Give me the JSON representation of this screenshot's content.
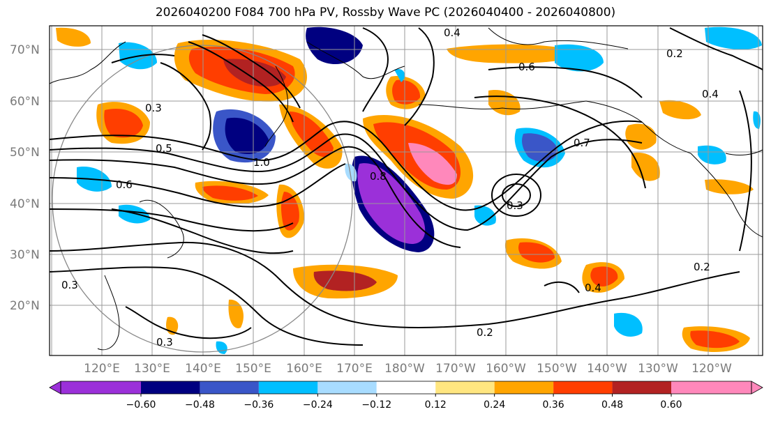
{
  "title": "2026040200 F084 700 hPa PV, Rossby Wave PC (2026040400 - 2026040800)",
  "map": {
    "lat_labels": [
      "70°N",
      "60°N",
      "50°N",
      "40°N",
      "30°N",
      "20°N"
    ],
    "lon_labels": [
      "120°E",
      "130°E",
      "140°E",
      "150°E",
      "160°E",
      "170°E",
      "180°W",
      "170°W",
      "160°W",
      "150°W",
      "140°W",
      "130°W",
      "120°W"
    ],
    "contour_labels": [
      "0.4",
      "0.2",
      "0.6",
      "0.7",
      "0.3",
      "0.5",
      "0.8",
      "1.0",
      "0.6",
      "0.3",
      "0.2",
      "0.4",
      "0.3",
      "0.2",
      "0.3",
      "0.4"
    ]
  },
  "colorbar": {
    "ticks": [
      "−0.60",
      "−0.48",
      "−0.36",
      "−0.24",
      "−0.12",
      "0.12",
      "0.24",
      "0.36",
      "0.48",
      "0.60"
    ],
    "colors": [
      "#9b30d9",
      "#000080",
      "#3a56c8",
      "#00bfff",
      "#a8dcff",
      "#ffffff",
      "#ffe680",
      "#ffa500",
      "#ff3e00",
      "#b22222",
      "#ff88bb"
    ]
  }
}
